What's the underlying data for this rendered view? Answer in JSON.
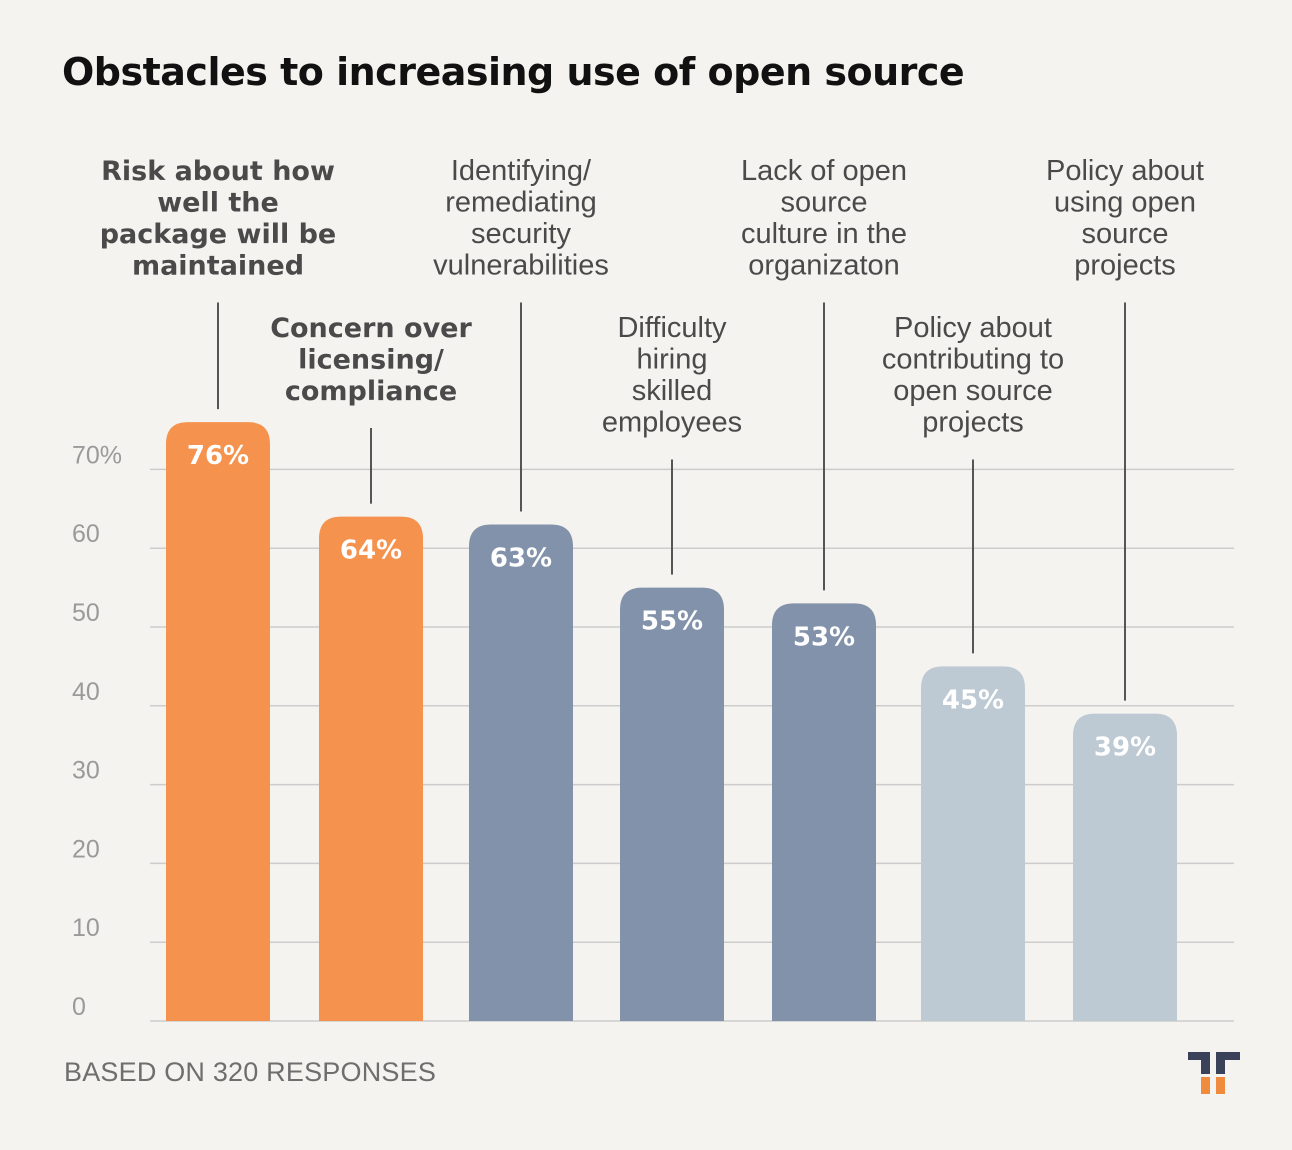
{
  "title": "Obstacles to increasing use of open source",
  "footer": "BASED ON 320 RESPONSES",
  "colors": {
    "background": "#f5f3ef",
    "orange": "#f5924d",
    "slate": "#8392ab",
    "light": "#bdcad4",
    "grid": "#cccccc",
    "axis_text": "#9a9a9a",
    "label_text": "#4a4a4a",
    "logo_dark": "#3a4259",
    "logo_orange": "#f08a3c"
  },
  "logo": {
    "icon": "tt-logo-icon"
  },
  "chart_data": {
    "type": "bar",
    "title": "Obstacles to increasing use of open source",
    "xlabel": "",
    "ylabel": "",
    "ylim": [
      0,
      70
    ],
    "yticks": [
      0,
      10,
      20,
      30,
      40,
      50,
      60,
      70
    ],
    "ytick_labels": [
      "0",
      "10",
      "20",
      "30",
      "40",
      "50",
      "60",
      "70%"
    ],
    "grid": true,
    "categories": [
      [
        "Risk about how",
        "well the",
        "package will be",
        "maintained"
      ],
      [
        "Concern over",
        "licensing/",
        "compliance"
      ],
      [
        "Identifying/",
        "remediating",
        "security",
        "vulnerabilities"
      ],
      [
        "Difficulty",
        "hiring",
        "skilled",
        "employees"
      ],
      [
        "Lack of open",
        "source",
        "culture in the",
        "organizaton"
      ],
      [
        "Policy about",
        "contributing to",
        "open source",
        "projects"
      ],
      [
        "Policy about",
        "using open",
        "source",
        "projects"
      ]
    ],
    "values": [
      76,
      64,
      63,
      55,
      53,
      45,
      39
    ],
    "value_labels": [
      "76%",
      "64%",
      "63%",
      "55%",
      "53%",
      "45%",
      "39%"
    ],
    "bar_color_keys": [
      "orange",
      "orange",
      "slate",
      "slate",
      "slate",
      "light",
      "light"
    ],
    "label_bold": [
      true,
      true,
      false,
      false,
      false,
      false,
      false
    ],
    "label_placement": [
      "high",
      "low",
      "high",
      "low",
      "high",
      "low",
      "high"
    ]
  }
}
